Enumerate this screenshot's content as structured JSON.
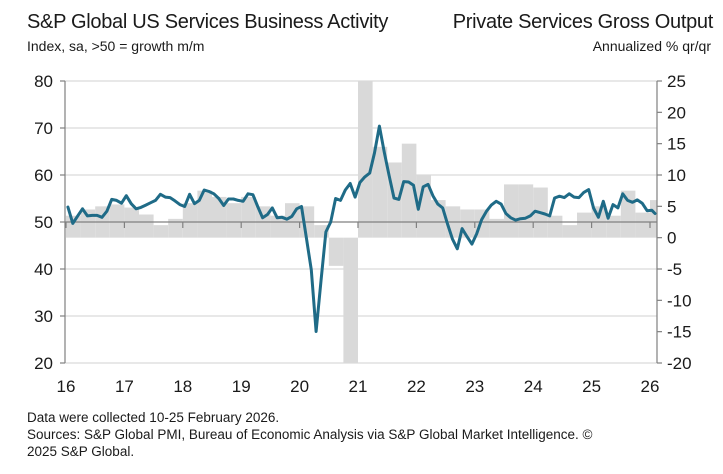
{
  "header": {
    "left_title": "S&P Global US Services Business Activity",
    "left_subtitle": "Index, sa, >50 = growth m/m",
    "right_title": "Private Services Gross Output",
    "right_subtitle": "Annualized % qr/qr"
  },
  "footer": {
    "line1": "Data were collected 10-25 February 2026.",
    "line2": "Sources: S&P Global PMI, Bureau of Economic Analysis via S&P Global Market Intelligence. ©",
    "line3": "2025 S&P Global."
  },
  "colors": {
    "line": "#1f6b87",
    "bars": "#d9d9d9",
    "grid": "#d9d9d9",
    "axis": "#808080"
  },
  "chart_data": {
    "type": "bar+line",
    "title": "S&P Global US Services Business Activity vs Private Services Gross Output",
    "x_tick_labels": [
      "16",
      "17",
      "18",
      "19",
      "20",
      "21",
      "22",
      "23",
      "24",
      "25",
      "26"
    ],
    "x_range": [
      2016.0,
      2026.15
    ],
    "left_axis": {
      "label": "Index, sa, >50 = growth m/m",
      "ylim": [
        20,
        80
      ],
      "ticks": [
        20,
        30,
        40,
        50,
        60,
        70,
        80
      ]
    },
    "right_axis": {
      "label": "Annualized % qr/qr",
      "ylim": [
        -20,
        25
      ],
      "ticks": [
        -20,
        -15,
        -10,
        -5,
        0,
        5,
        10,
        15,
        20,
        25
      ]
    },
    "grid": true,
    "bar_series": {
      "name": "Private Services Gross Output (right axis)",
      "quarters_start": 2016.0,
      "values": [
        3.5,
        4.5,
        5.0,
        5.3,
        4.8,
        3.7,
        2.0,
        3.0,
        5.5,
        7.5,
        6.5,
        5.5,
        6.5,
        5.0,
        3.5,
        5.5,
        5.0,
        2.0,
        -4.5,
        -20.0,
        25.0,
        14.5,
        12.0,
        15.0,
        10.0,
        6.0,
        5.0,
        4.5,
        4.5,
        3.0,
        8.5,
        8.5,
        8.0,
        3.5,
        2.0,
        4.0,
        5.0,
        3.5,
        7.5,
        4.0,
        6.0,
        5.5,
        7.5,
        1.0
      ]
    },
    "line_series": {
      "name": "S&P Global US Services Business Activity Index (left axis)",
      "start": 2016.0,
      "step_months": 1,
      "values": [
        53.2,
        49.7,
        51.3,
        52.8,
        51.3,
        51.4,
        51.4,
        51.0,
        52.3,
        54.8,
        54.6,
        54.0,
        55.6,
        53.9,
        52.8,
        53.1,
        53.6,
        54.1,
        54.6,
        55.9,
        55.3,
        55.2,
        54.5,
        53.7,
        53.3,
        55.9,
        53.9,
        54.6,
        56.8,
        56.5,
        56.0,
        55.0,
        53.5,
        54.9,
        54.9,
        54.6,
        54.4,
        56.0,
        55.8,
        53.3,
        50.9,
        51.6,
        53.0,
        50.9,
        51.0,
        50.6,
        51.2,
        52.8,
        53.3,
        46.6,
        39.8,
        26.7,
        37.5,
        47.9,
        50.0,
        55.0,
        54.6,
        56.8,
        58.2,
        55.3,
        58.4,
        59.6,
        60.4,
        64.7,
        70.4,
        64.8,
        59.9,
        55.1,
        54.8,
        58.6,
        58.5,
        57.8,
        52.7,
        57.5,
        58.0,
        55.6,
        53.8,
        53.0,
        49.6,
        46.4,
        44.3,
        48.6,
        46.9,
        45.3,
        47.5,
        50.5,
        52.3,
        53.6,
        54.4,
        53.8,
        51.8,
        50.9,
        50.4,
        50.7,
        50.8,
        51.3,
        52.3,
        52.0,
        51.7,
        51.3,
        55.1,
        55.5,
        55.2,
        56.0,
        55.3,
        55.2,
        56.3,
        56.9,
        53.0,
        51.0,
        54.4,
        50.8,
        53.7,
        53.0,
        56.0,
        54.6,
        54.2,
        54.7,
        54.0,
        52.4,
        52.5,
        51.8
      ]
    }
  }
}
